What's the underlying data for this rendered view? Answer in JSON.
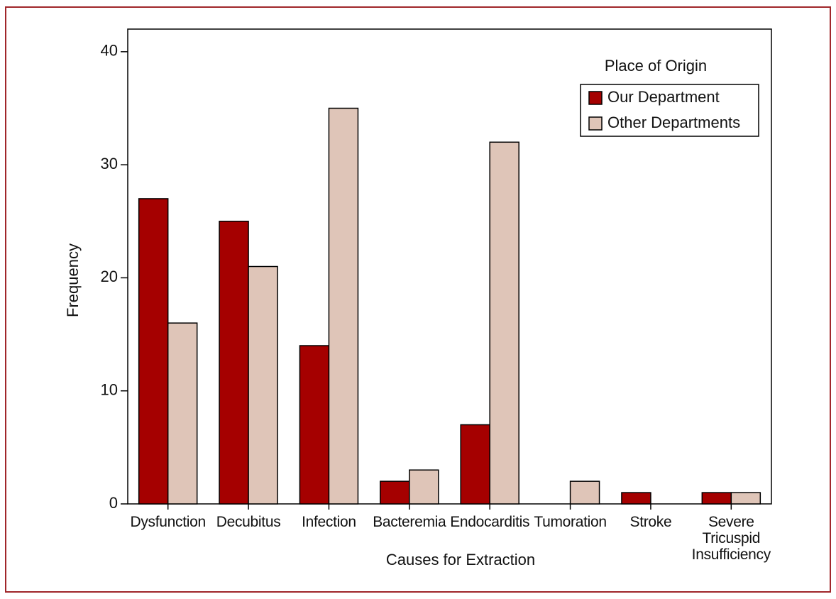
{
  "chart_data": {
    "type": "bar",
    "x_label": "Causes for Extraction",
    "y_label": "Frequency",
    "categories": [
      "Dysfunction",
      "Decubitus",
      "Infection",
      "Bacteremia",
      "Endocarditis",
      "Tumoration",
      "Stroke",
      "Severe\nTricuspid\nInsufficiency"
    ],
    "series": [
      {
        "name": "Our Department",
        "color": "#a50000",
        "values": [
          27,
          25,
          14,
          2,
          7,
          0,
          1,
          1
        ]
      },
      {
        "name": "Other Departments",
        "color": "#dfc5b8",
        "values": [
          16,
          21,
          35,
          3,
          32,
          2,
          0,
          1
        ]
      }
    ],
    "ylim": [
      0,
      42
    ],
    "yticks": [
      0,
      10,
      20,
      30,
      40
    ],
    "legend_title": "Place of Origin",
    "legend": "top-right"
  }
}
